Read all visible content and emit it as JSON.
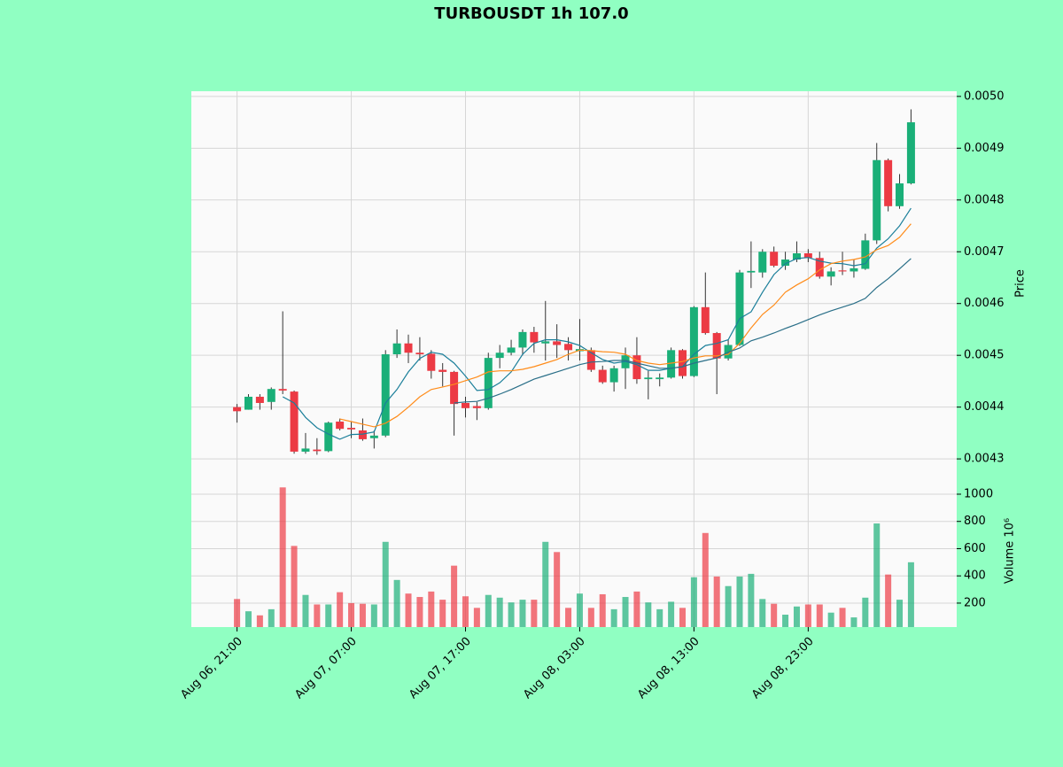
{
  "chart_data": {
    "type": "candlestick",
    "title": "TURBOUSDT 1h 107.0",
    "ylabel": "Price",
    "categories": [
      "Aug 06, 21:00",
      null,
      null,
      null,
      null,
      null,
      null,
      null,
      null,
      null,
      "Aug 07, 07:00",
      null,
      null,
      null,
      null,
      null,
      null,
      null,
      null,
      null,
      "Aug 07, 17:00",
      null,
      null,
      null,
      null,
      null,
      null,
      null,
      null,
      null,
      "Aug 08, 03:00",
      null,
      null,
      null,
      null,
      null,
      null,
      null,
      null,
      null,
      "Aug 08, 13:00",
      null,
      null,
      null,
      null,
      null,
      null,
      null,
      null,
      null,
      "Aug 08, 23:00",
      null,
      null,
      null,
      null,
      null,
      null,
      null,
      null,
      null
    ],
    "open": [
      0.0044,
      0.004395,
      0.00442,
      0.00441,
      0.004435,
      0.00443,
      0.004314,
      0.004318,
      0.004315,
      0.004372,
      0.00436,
      0.004355,
      0.00434,
      0.004345,
      0.004502,
      0.004523,
      0.004505,
      0.004503,
      0.004472,
      0.004468,
      0.004408,
      0.004402,
      0.004398,
      0.004495,
      0.004505,
      0.004515,
      0.004545,
      0.004523,
      0.004527,
      0.004522,
      0.004508,
      0.00451,
      0.004472,
      0.004448,
      0.004475,
      0.0045,
      0.004454,
      0.004454,
      0.004457,
      0.00451,
      0.00446,
      0.004593,
      0.004543,
      0.004494,
      0.00452,
      0.00466,
      0.00466,
      0.0047,
      0.004673,
      0.004685,
      0.004697,
      0.004688,
      0.004652,
      0.004664,
      0.004662,
      0.004667,
      0.004722,
      0.004877,
      0.004788,
      0.004832
    ],
    "high": [
      0.004406,
      0.004425,
      0.004425,
      0.004438,
      0.004585,
      0.004432,
      0.00435,
      0.00434,
      0.004372,
      0.004378,
      0.004372,
      0.004378,
      0.004355,
      0.00451,
      0.00455,
      0.00454,
      0.004535,
      0.00451,
      0.004485,
      0.00447,
      0.00442,
      0.00441,
      0.004505,
      0.00452,
      0.00453,
      0.00455,
      0.004555,
      0.004605,
      0.00456,
      0.004535,
      0.00457,
      0.004515,
      0.00448,
      0.00448,
      0.004515,
      0.004535,
      0.00447,
      0.004465,
      0.004515,
      0.004512,
      0.004595,
      0.00466,
      0.004545,
      0.00453,
      0.004665,
      0.00472,
      0.004705,
      0.00471,
      0.0047,
      0.00472,
      0.004705,
      0.0047,
      0.00467,
      0.0047,
      0.004685,
      0.004735,
      0.00491,
      0.00488,
      0.00485,
      0.004975
    ],
    "low": [
      0.00437,
      0.004395,
      0.004395,
      0.004395,
      0.004425,
      0.00431,
      0.00431,
      0.004308,
      0.004313,
      0.004355,
      0.00434,
      0.004335,
      0.00432,
      0.004342,
      0.004495,
      0.004485,
      0.00449,
      0.004455,
      0.00444,
      0.004345,
      0.00438,
      0.004375,
      0.004395,
      0.004475,
      0.0045,
      0.0045,
      0.004505,
      0.00449,
      0.004495,
      0.00449,
      0.00449,
      0.004468,
      0.004445,
      0.00443,
      0.004435,
      0.004445,
      0.004415,
      0.00444,
      0.004455,
      0.004455,
      0.004458,
      0.00454,
      0.004425,
      0.00449,
      0.004518,
      0.00463,
      0.00465,
      0.00467,
      0.004665,
      0.00468,
      0.00468,
      0.004648,
      0.004635,
      0.004655,
      0.00465,
      0.004665,
      0.004715,
      0.004778,
      0.004783,
      0.00483
    ],
    "close": [
      0.004392,
      0.00442,
      0.004408,
      0.004435,
      0.004432,
      0.004314,
      0.00432,
      0.004315,
      0.00437,
      0.004358,
      0.004357,
      0.004338,
      0.004345,
      0.004502,
      0.004523,
      0.004505,
      0.004502,
      0.00447,
      0.004468,
      0.004406,
      0.004398,
      0.004398,
      0.004495,
      0.004505,
      0.004515,
      0.004545,
      0.004525,
      0.004527,
      0.00452,
      0.00451,
      0.004512,
      0.004472,
      0.004448,
      0.004475,
      0.0045,
      0.004454,
      0.004457,
      0.004457,
      0.00451,
      0.00446,
      0.004593,
      0.004543,
      0.004494,
      0.00452,
      0.00466,
      0.004663,
      0.0047,
      0.004673,
      0.004685,
      0.004697,
      0.004688,
      0.004652,
      0.004662,
      0.004662,
      0.004668,
      0.004722,
      0.004877,
      0.004788,
      0.004832,
      0.00495
    ],
    "up_color": "#1aaf78",
    "down_color": "#ec3a44",
    "series": [
      {
        "color": "#1b7f9a",
        "values": [
          null,
          null,
          null,
          null,
          0.00442,
          0.004408,
          0.00438,
          0.00436,
          0.004348,
          0.004338,
          0.004347,
          0.004348,
          0.004352,
          0.004408,
          0.004434,
          0.004468,
          0.004494,
          0.004506,
          0.004502,
          0.004485,
          0.00446,
          0.004432,
          0.004434,
          0.004447,
          0.004468,
          0.004502,
          0.004523,
          0.00453,
          0.00453,
          0.004526,
          0.004519,
          0.004505,
          0.004492,
          0.004485,
          0.004488,
          0.004482,
          0.004471,
          0.004471,
          0.004475,
          0.004478,
          0.004502,
          0.004519,
          0.004523,
          0.00453,
          0.004571,
          0.004584,
          0.004622,
          0.004656,
          0.004677,
          0.004687,
          0.004689,
          0.004682,
          0.004678,
          0.004677,
          0.004673,
          0.004677,
          0.004707,
          0.004725,
          0.00475,
          0.004784
        ]
      },
      {
        "color": "#ff8c1a",
        "values": [
          null,
          null,
          null,
          null,
          null,
          null,
          null,
          null,
          null,
          0.004377,
          0.004372,
          0.004367,
          0.004362,
          0.004369,
          0.004382,
          0.0044,
          0.00442,
          0.004434,
          0.004439,
          0.004444,
          0.004451,
          0.004458,
          0.004468,
          0.00447,
          0.00447,
          0.004473,
          0.004478,
          0.004485,
          0.004492,
          0.004502,
          0.00451,
          0.004509,
          0.004507,
          0.004506,
          0.004502,
          0.00449,
          0.004485,
          0.004482,
          0.004485,
          0.004488,
          0.004495,
          0.004499,
          0.004499,
          0.004502,
          0.004523,
          0.004553,
          0.004579,
          0.004597,
          0.004622,
          0.004636,
          0.004648,
          0.004665,
          0.004677,
          0.004682,
          0.004685,
          0.00469,
          0.004704,
          0.004712,
          0.004728,
          0.004754
        ]
      },
      {
        "color": "#2a6f88",
        "values": [
          null,
          null,
          null,
          null,
          null,
          null,
          null,
          null,
          null,
          null,
          null,
          null,
          null,
          null,
          null,
          null,
          null,
          null,
          null,
          0.004408,
          0.00441,
          0.004411,
          0.004417,
          0.004425,
          0.004434,
          0.004444,
          0.004454,
          0.004461,
          0.004468,
          0.004475,
          0.004482,
          0.004487,
          0.004488,
          0.00449,
          0.00449,
          0.004485,
          0.00448,
          0.004475,
          0.004475,
          0.004478,
          0.004485,
          0.00449,
          0.004495,
          0.004506,
          0.004514,
          0.004528,
          0.004535,
          0.004543,
          0.004552,
          0.00456,
          0.004569,
          0.004578,
          0.004586,
          0.004593,
          0.0046,
          0.00461,
          0.004631,
          0.004648,
          0.004667,
          0.004687
        ]
      }
    ],
    "xlim": [
      -4,
      63
    ],
    "ylim": [
      0.004266,
      0.00501
    ],
    "yticks": [
      0.0043,
      0.0044,
      0.0045,
      0.0046,
      0.0047,
      0.0048,
      0.0049,
      {
        "value": 0.005,
        "label": "0.0050"
      }
    ],
    "grid": true,
    "volume": {
      "ylabel": "Volume  10⁶",
      "ylim": [
        24,
        1130
      ],
      "yticks": [
        200,
        400,
        600,
        800,
        1000
      ],
      "values": [
        230,
        140,
        110,
        155,
        1050,
        620,
        260,
        190,
        190,
        280,
        200,
        195,
        190,
        650,
        370,
        270,
        245,
        285,
        225,
        475,
        250,
        165,
        260,
        240,
        205,
        225,
        225,
        650,
        575,
        165,
        270,
        165,
        265,
        155,
        245,
        285,
        205,
        155,
        210,
        165,
        390,
        715,
        395,
        325,
        395,
        415,
        230,
        195,
        115,
        175,
        190,
        190,
        130,
        165,
        95,
        240,
        785,
        410,
        225,
        500
      ]
    }
  }
}
